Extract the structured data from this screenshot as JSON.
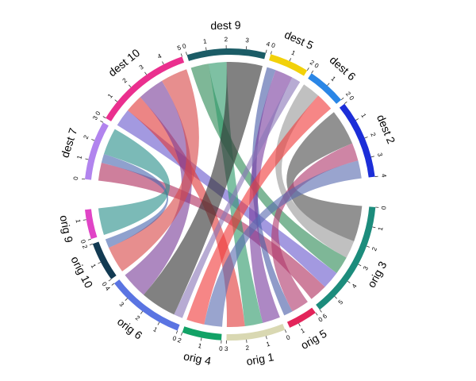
{
  "chart_data": {
    "type": "chord",
    "sectors": [
      {
        "name": "dest 7",
        "color": "#b184ee",
        "ticks": [
          0,
          1,
          2,
          3
        ]
      },
      {
        "name": "dest 10",
        "color": "#ea2f8e",
        "ticks": [
          0,
          1,
          2,
          3,
          4,
          5
        ]
      },
      {
        "name": "dest 9",
        "color": "#1b5c66",
        "ticks": [
          0,
          1,
          2,
          3,
          4
        ]
      },
      {
        "name": "dest 5",
        "color": "#f2d10a",
        "ticks": [
          0,
          1,
          2
        ]
      },
      {
        "name": "dest 6",
        "color": "#2a86e6",
        "ticks": [
          0,
          1,
          2
        ]
      },
      {
        "name": "dest 2",
        "color": "#1c2ed8",
        "ticks": [
          0,
          1,
          2,
          3,
          4
        ]
      },
      {
        "name": "orig 3",
        "color": "#1c8c7c",
        "ticks": [
          0,
          1,
          2,
          3,
          4,
          5,
          6
        ]
      },
      {
        "name": "orig 5",
        "color": "#e3245a",
        "ticks": [
          0,
          1
        ]
      },
      {
        "name": "orig 1",
        "color": "#d9d8b2",
        "ticks": [
          0,
          1,
          2,
          3
        ]
      },
      {
        "name": "orig 4",
        "color": "#12a266",
        "ticks": [
          0,
          1,
          2
        ]
      },
      {
        "name": "orig 6",
        "color": "#5a74e2",
        "ticks": [
          0,
          1,
          2,
          3,
          4
        ]
      },
      {
        "name": "orig 10",
        "color": "#123a52",
        "ticks": [
          0,
          1,
          2
        ]
      },
      {
        "name": "orig 9",
        "color": "#e044c6",
        "ticks": [
          0,
          1
        ]
      }
    ],
    "links": [
      {
        "from": "orig 3",
        "to": "dest 2",
        "value": 2,
        "color": "#4d4d4d"
      },
      {
        "from": "orig 3",
        "to": "dest 6",
        "value": 1,
        "color": "#9a9a9a"
      },
      {
        "from": "orig 3",
        "to": "dest 9",
        "value": 1,
        "color": "#2e8b57"
      },
      {
        "from": "orig 3",
        "to": "dest 10",
        "value": 1,
        "color": "#6a5acd"
      },
      {
        "from": "orig 3",
        "to": "dest 7",
        "value": 1,
        "color": "#b03060"
      },
      {
        "from": "orig 5",
        "to": "dest 2",
        "value": 1,
        "color": "#b03a6e"
      },
      {
        "from": "orig 5",
        "to": "dest 5",
        "value": 0.5,
        "color": "#4b5ea8"
      },
      {
        "from": "orig 1",
        "to": "dest 5",
        "value": 1,
        "color": "#7b3fa0"
      },
      {
        "from": "orig 1",
        "to": "dest 9",
        "value": 1,
        "color": "#2e9a6a"
      },
      {
        "from": "orig 1",
        "to": "dest 10",
        "value": 1,
        "color": "#e03a3a"
      },
      {
        "from": "orig 4",
        "to": "dest 2",
        "value": 1,
        "color": "#5a6cb0"
      },
      {
        "from": "orig 4",
        "to": "dest 6",
        "value": 1,
        "color": "#f03c3c"
      },
      {
        "from": "orig 6",
        "to": "dest 5",
        "value": 0.5,
        "color": "#8a78b8"
      },
      {
        "from": "orig 6",
        "to": "dest 9",
        "value": 2,
        "color": "#333333"
      },
      {
        "from": "orig 6",
        "to": "dest 10",
        "value": 1.5,
        "color": "#7a3f9a"
      },
      {
        "from": "orig 10",
        "to": "dest 10",
        "value": 1.5,
        "color": "#d84848"
      },
      {
        "from": "orig 10",
        "to": "dest 7",
        "value": 0.5,
        "color": "#4a68b0"
      },
      {
        "from": "orig 9",
        "to": "dest 7",
        "value": 1.5,
        "color": "#2a8f8a"
      }
    ]
  }
}
